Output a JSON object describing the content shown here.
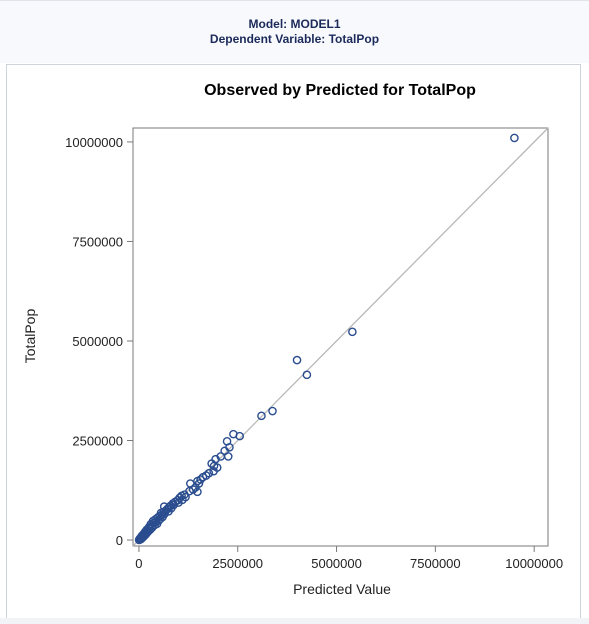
{
  "header": {
    "model": "Model: MODEL1",
    "dependent": "Dependent Variable: TotalPop"
  },
  "colors": {
    "marker": "#2a4d8f",
    "reference_line": "#b8b8b8",
    "axis": "#7a7a7a",
    "text": "#000000",
    "header_text": "#1b2a5a"
  },
  "chart_data": {
    "type": "scatter",
    "title": "Observed by Predicted for TotalPop",
    "xlabel": "Predicted Value",
    "ylabel": "TotalPop",
    "xlim": [
      -150000,
      10350000
    ],
    "ylim": [
      -150000,
      10350000
    ],
    "x_ticks": [
      0,
      2500000,
      5000000,
      7500000,
      10000000
    ],
    "y_ticks": [
      0,
      2500000,
      5000000,
      7500000,
      10000000
    ],
    "x_tick_labels": [
      "0",
      "2500000",
      "5000000",
      "7500000",
      "10000000"
    ],
    "y_tick_labels": [
      "0",
      "2500000",
      "5000000",
      "7500000",
      "10000000"
    ],
    "reference_line": "y = x",
    "grid": false,
    "series": [
      {
        "points": [
          [
            9500000,
            10100000
          ],
          [
            5400000,
            5230000
          ],
          [
            4000000,
            4520000
          ],
          [
            4250000,
            4150000
          ],
          [
            3380000,
            3240000
          ],
          [
            3100000,
            3120000
          ],
          [
            2550000,
            2610000
          ],
          [
            2390000,
            2660000
          ],
          [
            2230000,
            2480000
          ],
          [
            2290000,
            2330000
          ],
          [
            2170000,
            2240000
          ],
          [
            2260000,
            2100000
          ],
          [
            2070000,
            2100000
          ],
          [
            1940000,
            2030000
          ],
          [
            1840000,
            1920000
          ],
          [
            1900000,
            1860000
          ],
          [
            1980000,
            1820000
          ],
          [
            1890000,
            1730000
          ],
          [
            1770000,
            1680000
          ],
          [
            1700000,
            1620000
          ],
          [
            1620000,
            1580000
          ],
          [
            1560000,
            1520000
          ],
          [
            1480000,
            1480000
          ],
          [
            1300000,
            1420000
          ],
          [
            1520000,
            1420000
          ],
          [
            1430000,
            1320000
          ],
          [
            1370000,
            1270000
          ],
          [
            1280000,
            1230000
          ],
          [
            1480000,
            1210000
          ],
          [
            1150000,
            1140000
          ],
          [
            1080000,
            1110000
          ],
          [
            1180000,
            1080000
          ],
          [
            1030000,
            1060000
          ],
          [
            1100000,
            1010000
          ],
          [
            980000,
            1000000
          ],
          [
            920000,
            960000
          ],
          [
            1000000,
            940000
          ],
          [
            860000,
            920000
          ],
          [
            880000,
            880000
          ],
          [
            800000,
            860000
          ],
          [
            640000,
            840000
          ],
          [
            760000,
            820000
          ],
          [
            820000,
            800000
          ],
          [
            720000,
            780000
          ],
          [
            680000,
            740000
          ],
          [
            750000,
            720000
          ],
          [
            620000,
            700000
          ],
          [
            560000,
            680000
          ],
          [
            650000,
            660000
          ],
          [
            580000,
            630000
          ],
          [
            520000,
            600000
          ],
          [
            600000,
            580000
          ],
          [
            470000,
            560000
          ],
          [
            540000,
            530000
          ],
          [
            420000,
            520000
          ],
          [
            500000,
            490000
          ],
          [
            360000,
            480000
          ],
          [
            440000,
            460000
          ],
          [
            380000,
            430000
          ],
          [
            460000,
            410000
          ],
          [
            300000,
            400000
          ],
          [
            400000,
            380000
          ],
          [
            340000,
            360000
          ],
          [
            270000,
            340000
          ],
          [
            330000,
            310000
          ],
          [
            240000,
            300000
          ],
          [
            290000,
            270000
          ],
          [
            200000,
            260000
          ],
          [
            250000,
            230000
          ],
          [
            170000,
            220000
          ],
          [
            210000,
            190000
          ],
          [
            140000,
            180000
          ],
          [
            180000,
            150000
          ],
          [
            110000,
            140000
          ],
          [
            150000,
            120000
          ],
          [
            80000,
            110000
          ],
          [
            120000,
            90000
          ],
          [
            60000,
            80000
          ],
          [
            90000,
            60000
          ],
          [
            40000,
            50000
          ],
          [
            60000,
            30000
          ],
          [
            20000,
            30000
          ],
          [
            35000,
            15000
          ],
          [
            10000,
            10000
          ],
          [
            5000,
            2000
          ]
        ]
      }
    ]
  }
}
